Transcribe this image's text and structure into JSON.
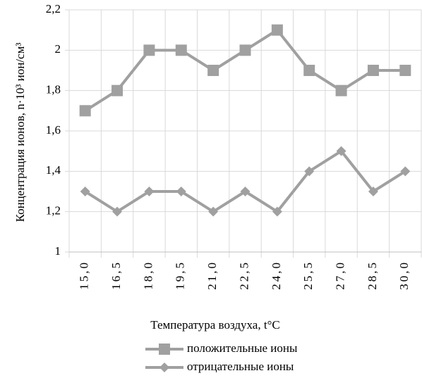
{
  "chart_data": {
    "type": "line",
    "xlabel": "Температура воздуха, t°C",
    "ylabel": "Концентрация ионов, n·10³ ион/см³",
    "categories": [
      "15,0",
      "16,5",
      "18,0",
      "19,5",
      "21,0",
      "22,5",
      "24,0",
      "25,5",
      "27,0",
      "28,5",
      "30,0"
    ],
    "series": [
      {
        "name": "положительные ионы",
        "color": "#a0a0a0",
        "marker": "square",
        "values": [
          1.7,
          1.8,
          2,
          2,
          1.9,
          2,
          2.1,
          1.9,
          1.8,
          1.9,
          1.9
        ]
      },
      {
        "name": "отрицательные ионы",
        "color": "#a0a0a0",
        "marker": "diamond",
        "values": [
          1.3,
          1.2,
          1.3,
          1.3,
          1.2,
          1.3,
          1.2,
          1.4,
          1.5,
          1.3,
          1.4
        ]
      }
    ],
    "ylim": [
      1,
      2.2
    ],
    "yticks": [
      1,
      {
        "value": 1.2,
        "label": "1,2"
      },
      {
        "value": 1.4,
        "label": "1,4"
      },
      {
        "value": 1.6,
        "label": "1,6"
      },
      {
        "value": 1.8,
        "label": "1,8"
      },
      2,
      {
        "value": 2.2,
        "label": "2,2"
      }
    ],
    "grid": true,
    "legend": "bottom"
  }
}
